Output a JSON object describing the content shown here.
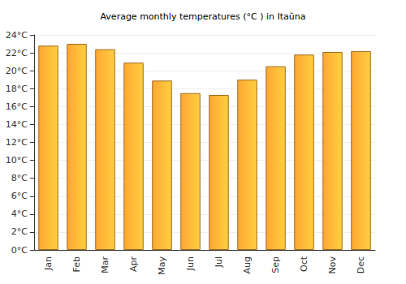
{
  "chart_data": {
    "type": "bar",
    "title": "Average monthly temperatures (°C ) in Itaŭna",
    "categories": [
      "Jan",
      "Feb",
      "Mar",
      "Apr",
      "May",
      "Jun",
      "Jul",
      "Aug",
      "Sep",
      "Oct",
      "Nov",
      "Dec"
    ],
    "values": [
      22.8,
      23.0,
      22.4,
      20.9,
      18.9,
      17.5,
      17.3,
      19.0,
      20.5,
      21.8,
      22.1,
      22.2
    ],
    "color": "#ffa733",
    "ylim": [
      0,
      24
    ],
    "yticks": [
      {
        "value": 0,
        "label": "0°C"
      },
      {
        "value": 2,
        "label": "2°C"
      },
      {
        "value": 4,
        "label": "4°C"
      },
      {
        "value": 6,
        "label": "6°C"
      },
      {
        "value": 8,
        "label": "8°C"
      },
      {
        "value": 10,
        "label": "10°C"
      },
      {
        "value": 12,
        "label": "12°C"
      },
      {
        "value": 14,
        "label": "14°C"
      },
      {
        "value": 16,
        "label": "16°C"
      },
      {
        "value": 18,
        "label": "18°C"
      },
      {
        "value": 20,
        "label": "20°C"
      },
      {
        "value": 22,
        "label": "22°C"
      },
      {
        "value": 24,
        "label": "24°C"
      }
    ],
    "grid": true
  }
}
